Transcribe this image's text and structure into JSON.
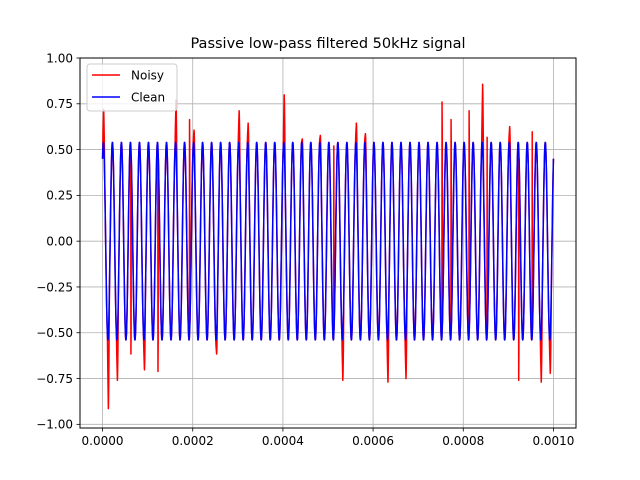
{
  "chart_data": {
    "type": "line",
    "title": "Passive low-pass filtered 50kHz signal",
    "xlabel": "",
    "ylabel": "",
    "xlim": [
      0,
      0.001
    ],
    "ylim": [
      -1.0,
      1.0
    ],
    "grid": true,
    "legend_placement": "top-left",
    "x_ticks": [
      {
        "value": 0.0,
        "label": "0.0000"
      },
      {
        "value": 0.0002,
        "label": "0.0002"
      },
      {
        "value": 0.0004,
        "label": "0.0004"
      },
      {
        "value": 0.0006,
        "label": "0.0006"
      },
      {
        "value": 0.0008,
        "label": "0.0008"
      },
      {
        "value": 0.001,
        "label": "0.0010"
      }
    ],
    "y_ticks": [
      {
        "value": -1.0,
        "label": "−1.00"
      },
      {
        "value": -0.75,
        "label": "−0.75"
      },
      {
        "value": -0.5,
        "label": "−0.50"
      },
      {
        "value": -0.25,
        "label": "−0.25"
      },
      {
        "value": 0.0,
        "label": "0.00"
      },
      {
        "value": 0.25,
        "label": "0.25"
      },
      {
        "value": 0.5,
        "label": "0.50"
      },
      {
        "value": 0.75,
        "label": "0.75"
      },
      {
        "value": 1.0,
        "label": "1.00"
      }
    ],
    "series": [
      {
        "name": "Noisy",
        "color": "#ff0000",
        "frequency_hz": 50000,
        "amplitude": 0.54,
        "phase_offset": 0.45,
        "x_start": 0.0,
        "x_end": 0.001,
        "spikes": [
          {
            "x": 2.5e-06,
            "y": 0.72
          },
          {
            "x": 1.3e-05,
            "y": -0.93
          },
          {
            "x": 3.3e-05,
            "y": -0.77
          },
          {
            "x": 6.3e-05,
            "y": -0.66
          },
          {
            "x": 9.3e-05,
            "y": -0.71
          },
          {
            "x": 0.000123,
            "y": -0.76
          },
          {
            "x": 0.000163,
            "y": 0.78
          },
          {
            "x": 0.000193,
            "y": 0.71
          },
          {
            "x": 0.000203,
            "y": 0.61
          },
          {
            "x": 0.000253,
            "y": -0.62
          },
          {
            "x": 0.000303,
            "y": 0.72
          },
          {
            "x": 0.000323,
            "y": 0.65
          },
          {
            "x": 0.000403,
            "y": 0.81
          },
          {
            "x": 0.000443,
            "y": 0.56
          },
          {
            "x": 0.000483,
            "y": 0.58
          },
          {
            "x": 0.000513,
            "y": 0.56
          },
          {
            "x": 0.000533,
            "y": -0.77
          },
          {
            "x": 0.000563,
            "y": 0.65
          },
          {
            "x": 0.000583,
            "y": 0.59
          },
          {
            "x": 0.000633,
            "y": -0.78
          },
          {
            "x": 0.000673,
            "y": -0.76
          },
          {
            "x": 0.000753,
            "y": 0.81
          },
          {
            "x": 0.000773,
            "y": 0.71
          },
          {
            "x": 0.000813,
            "y": 0.76
          },
          {
            "x": 0.000843,
            "y": 0.87
          },
          {
            "x": 0.000853,
            "y": 0.61
          },
          {
            "x": 0.000903,
            "y": 0.63
          },
          {
            "x": 0.000923,
            "y": -0.81
          },
          {
            "x": 0.000953,
            "y": 0.64
          },
          {
            "x": 0.000973,
            "y": -0.78
          },
          {
            "x": 0.000993,
            "y": -0.73
          }
        ]
      },
      {
        "name": "Clean",
        "color": "#0000ff",
        "frequency_hz": 50000,
        "amplitude": 0.54,
        "phase_offset": 0.45,
        "x_start": 0.0,
        "x_end": 0.001
      }
    ]
  }
}
